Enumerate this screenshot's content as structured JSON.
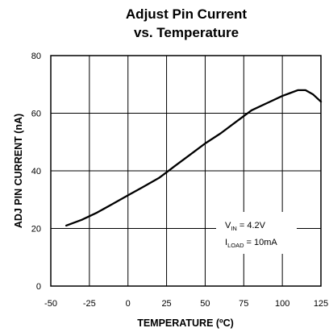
{
  "chart_data": {
    "type": "line",
    "title_line1": "Adjust Pin Current",
    "title_line2": "vs. Temperature",
    "xlabel": "TEMPERATURE (ºC)",
    "ylabel": "ADJ PIN CURRENT (nA)",
    "xlim": [
      -50,
      125
    ],
    "ylim": [
      0,
      80
    ],
    "x_ticks": [
      "-50",
      "-25",
      "0",
      "25",
      "50",
      "75",
      "100",
      "125"
    ],
    "y_ticks": [
      "0",
      "20",
      "40",
      "60",
      "80"
    ],
    "grid": true,
    "annotation": {
      "vin_base": "V",
      "vin_sub": "IN",
      "vin_value": " = 4.2V",
      "iload_base": "I",
      "iload_sub": "LOAD",
      "iload_value": " = 10mA"
    },
    "series": [
      {
        "x": [
          -40,
          -30,
          -20,
          -10,
          0,
          10,
          20,
          25,
          30,
          40,
          50,
          60,
          70,
          75,
          80,
          90,
          100,
          105,
          110,
          115,
          120,
          125
        ],
        "y": [
          21,
          23,
          25.5,
          28.5,
          31.5,
          34.5,
          37.5,
          39.5,
          41.5,
          45.5,
          49.5,
          53,
          57,
          59,
          61,
          63.5,
          66,
          67,
          68,
          68,
          66.5,
          64
        ]
      }
    ]
  }
}
